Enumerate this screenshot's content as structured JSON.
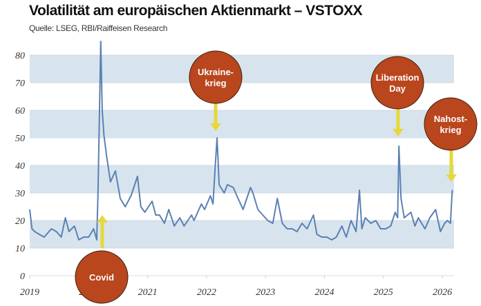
{
  "chart_data": {
    "type": "line",
    "title": "Volatilität am europäischen Aktienmarkt – VSTOXX",
    "subtitle": "Quelle: LSEG, RBI/Raiffeisen Research",
    "xlabel": "",
    "ylabel": "",
    "xlim": [
      "2019-01-01",
      "2026-03-15"
    ],
    "ylim": [
      0,
      85
    ],
    "x_ticks": [
      "2019",
      "2020",
      "2021",
      "2022",
      "2023",
      "2024",
      "2025",
      "2026"
    ],
    "y_ticks": [
      0,
      10,
      20,
      30,
      40,
      50,
      60,
      70,
      80
    ],
    "grid": "alternating horizontal bands",
    "colors": {
      "line": "#5b80b2",
      "band": "#d7e4ee",
      "annotation": "#b9461d",
      "arrow": "#e6d83a"
    },
    "series": [
      {
        "points": [
          [
            "2019-01-01",
            24
          ],
          [
            "2019-01-15",
            17
          ],
          [
            "2019-02-01",
            16
          ],
          [
            "2019-03-01",
            15
          ],
          [
            "2019-04-01",
            14
          ],
          [
            "2019-05-15",
            17
          ],
          [
            "2019-06-15",
            16
          ],
          [
            "2019-07-15",
            14
          ],
          [
            "2019-08-10",
            21
          ],
          [
            "2019-09-01",
            16
          ],
          [
            "2019-10-05",
            18
          ],
          [
            "2019-11-01",
            13
          ],
          [
            "2019-12-01",
            14
          ],
          [
            "2020-01-01",
            14
          ],
          [
            "2020-02-01",
            17
          ],
          [
            "2020-02-20",
            13
          ],
          [
            "2020-02-28",
            30
          ],
          [
            "2020-03-16",
            85
          ],
          [
            "2020-03-25",
            60
          ],
          [
            "2020-04-05",
            51
          ],
          [
            "2020-04-20",
            44
          ],
          [
            "2020-05-15",
            34
          ],
          [
            "2020-06-15",
            38
          ],
          [
            "2020-07-15",
            28
          ],
          [
            "2020-08-15",
            25
          ],
          [
            "2020-09-20",
            29
          ],
          [
            "2020-10-30",
            36
          ],
          [
            "2020-11-20",
            25
          ],
          [
            "2020-12-15",
            23
          ],
          [
            "2021-01-29",
            27
          ],
          [
            "2021-02-20",
            22
          ],
          [
            "2021-03-15",
            22
          ],
          [
            "2021-04-15",
            19
          ],
          [
            "2021-05-12",
            24
          ],
          [
            "2021-06-15",
            18
          ],
          [
            "2021-07-19",
            21
          ],
          [
            "2021-08-15",
            18
          ],
          [
            "2021-09-30",
            22
          ],
          [
            "2021-10-15",
            20
          ],
          [
            "2021-11-30",
            26
          ],
          [
            "2021-12-20",
            24
          ],
          [
            "2022-01-25",
            29
          ],
          [
            "2022-02-10",
            26
          ],
          [
            "2022-02-24",
            40
          ],
          [
            "2022-03-07",
            50
          ],
          [
            "2022-03-20",
            33
          ],
          [
            "2022-04-20",
            30
          ],
          [
            "2022-05-10",
            33
          ],
          [
            "2022-06-15",
            32
          ],
          [
            "2022-07-15",
            28
          ],
          [
            "2022-08-15",
            24
          ],
          [
            "2022-09-30",
            32
          ],
          [
            "2022-10-15",
            30
          ],
          [
            "2022-11-15",
            24
          ],
          [
            "2022-12-15",
            22
          ],
          [
            "2023-01-15",
            20
          ],
          [
            "2023-02-15",
            19
          ],
          [
            "2023-03-15",
            28
          ],
          [
            "2023-04-15",
            19
          ],
          [
            "2023-05-15",
            17
          ],
          [
            "2023-06-15",
            17
          ],
          [
            "2023-07-15",
            16
          ],
          [
            "2023-08-15",
            19
          ],
          [
            "2023-09-15",
            17
          ],
          [
            "2023-10-25",
            22
          ],
          [
            "2023-11-15",
            15
          ],
          [
            "2023-12-15",
            14
          ],
          [
            "2024-01-15",
            14
          ],
          [
            "2024-02-15",
            13
          ],
          [
            "2024-03-15",
            14
          ],
          [
            "2024-04-18",
            18
          ],
          [
            "2024-05-15",
            14
          ],
          [
            "2024-06-14",
            20
          ],
          [
            "2024-07-15",
            16
          ],
          [
            "2024-08-05",
            31
          ],
          [
            "2024-08-20",
            17
          ],
          [
            "2024-09-10",
            21
          ],
          [
            "2024-10-15",
            19
          ],
          [
            "2024-11-15",
            20
          ],
          [
            "2024-12-15",
            17
          ],
          [
            "2025-01-15",
            17
          ],
          [
            "2025-02-15",
            18
          ],
          [
            "2025-03-15",
            23
          ],
          [
            "2025-03-30",
            21
          ],
          [
            "2025-04-07",
            47
          ],
          [
            "2025-04-20",
            28
          ],
          [
            "2025-05-10",
            21
          ],
          [
            "2025-06-20",
            23
          ],
          [
            "2025-07-15",
            18
          ],
          [
            "2025-08-05",
            21
          ],
          [
            "2025-09-15",
            17
          ],
          [
            "2025-10-15",
            21
          ],
          [
            "2025-11-20",
            24
          ],
          [
            "2025-12-20",
            16
          ],
          [
            "2026-01-15",
            19
          ],
          [
            "2026-02-01",
            20
          ],
          [
            "2026-02-20",
            19
          ],
          [
            "2026-03-03",
            31
          ]
        ]
      }
    ],
    "annotations": [
      {
        "label": "Covid",
        "date": "2020-03-16"
      },
      {
        "label": "Ukraine-krieg",
        "lines": [
          "Ukraine-",
          "krieg"
        ],
        "date": "2022-03-07"
      },
      {
        "label": "Liberation Day",
        "lines": [
          "Liberation",
          "Day"
        ],
        "date": "2025-04-07"
      },
      {
        "label": "Nahost-krieg",
        "lines": [
          "Nahost-",
          "krieg"
        ],
        "date": "2026-03-03"
      }
    ]
  }
}
